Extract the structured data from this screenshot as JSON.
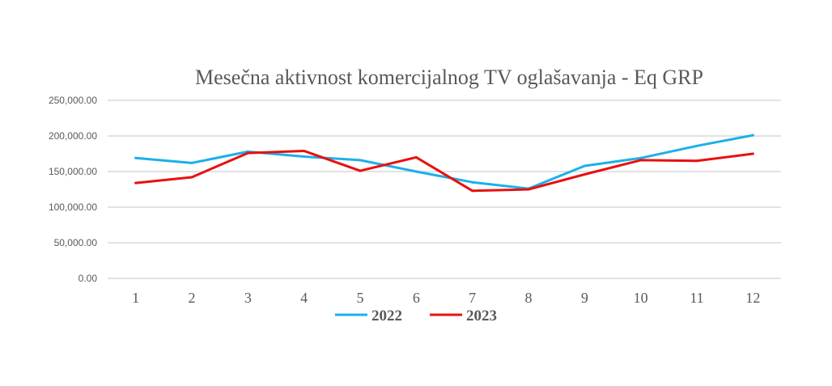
{
  "chart_data": {
    "type": "line",
    "title": "Mesečna aktivnost komercijalnog TV oglašavanja  - Eq GRP",
    "xlabel": "",
    "ylabel": "",
    "categories": [
      "1",
      "2",
      "3",
      "4",
      "5",
      "6",
      "7",
      "8",
      "9",
      "10",
      "11",
      "12"
    ],
    "ylim": [
      0,
      250000
    ],
    "yticks": [
      "0.00",
      "50,000.00",
      "100,000.00",
      "150,000.00",
      "200,000.00",
      "250,000.00"
    ],
    "ytick_values": [
      0,
      50000,
      100000,
      150000,
      200000,
      250000
    ],
    "grid": true,
    "legend_position": "bottom",
    "series": [
      {
        "name": "2022",
        "color": "#1cb0e8",
        "values": [
          169000,
          162000,
          178000,
          171000,
          166000,
          150000,
          135000,
          126000,
          158000,
          169000,
          186000,
          201000
        ]
      },
      {
        "name": "2023",
        "color": "#e81010",
        "values": [
          134000,
          142000,
          176000,
          179000,
          151000,
          170000,
          123000,
          125000,
          146000,
          166000,
          165000,
          175000
        ]
      }
    ]
  }
}
